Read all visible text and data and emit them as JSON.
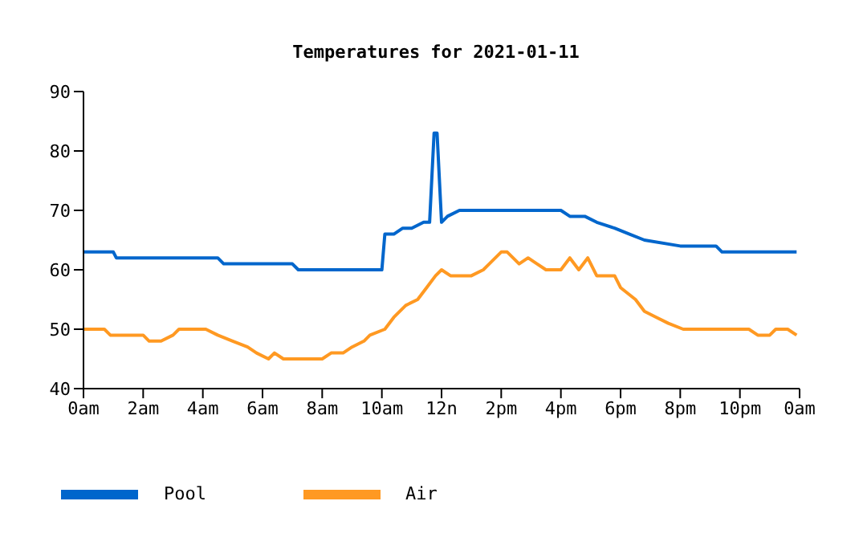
{
  "chart_data": {
    "type": "line",
    "title": "Temperatures for 2021-01-11",
    "xlim": [
      "2021-01-11T00:00",
      "2021-01-12T00:00"
    ],
    "xticks": [
      {
        "value": "2021-01-11T00:00",
        "label": "0am"
      },
      {
        "value": "2021-01-11T02:00",
        "label": "2am"
      },
      {
        "value": "2021-01-11T04:00",
        "label": "4am"
      },
      {
        "value": "2021-01-11T06:00",
        "label": "6am"
      },
      {
        "value": "2021-01-11T08:00",
        "label": "8am"
      },
      {
        "value": "2021-01-11T10:00",
        "label": "10am"
      },
      {
        "value": "2021-01-11T12:00",
        "label": "12n"
      },
      {
        "value": "2021-01-11T14:00",
        "label": "2pm"
      },
      {
        "value": "2021-01-11T16:00",
        "label": "4pm"
      },
      {
        "value": "2021-01-11T18:00",
        "label": "6pm"
      },
      {
        "value": "2021-01-11T20:00",
        "label": "8pm"
      },
      {
        "value": "2021-01-11T22:00",
        "label": "10pm"
      },
      {
        "value": "2021-01-12T00:00",
        "label": "0am"
      }
    ],
    "ylim": [
      40,
      90
    ],
    "yticks": [
      40,
      50,
      60,
      70,
      80,
      90
    ],
    "legend": "bottom left",
    "series": [
      {
        "name": "Pool",
        "color": "#0066cc",
        "x": [
          "2021-01-11T00:00",
          "2021-01-11T01:00",
          "2021-01-11T01:06",
          "2021-01-11T04:30",
          "2021-01-11T04:42",
          "2021-01-11T07:00",
          "2021-01-11T07:12",
          "2021-01-11T10:00",
          "2021-01-11T10:06",
          "2021-01-11T10:24",
          "2021-01-11T10:42",
          "2021-01-11T11:00",
          "2021-01-11T11:24",
          "2021-01-11T11:36",
          "2021-01-11T11:45",
          "2021-01-11T11:51",
          "2021-01-11T12:00",
          "2021-01-11T12:12",
          "2021-01-11T12:36",
          "2021-01-11T16:00",
          "2021-01-11T16:18",
          "2021-01-11T16:48",
          "2021-01-11T17:12",
          "2021-01-11T17:48",
          "2021-01-11T18:18",
          "2021-01-11T18:48",
          "2021-01-11T20:00",
          "2021-01-11T21:12",
          "2021-01-11T21:24",
          "2021-01-11T23:54"
        ],
        "values": [
          63,
          63,
          62,
          62,
          61,
          61,
          60,
          60,
          66,
          66,
          67,
          67,
          68,
          68,
          83,
          83,
          68,
          69,
          70,
          70,
          69,
          69,
          68,
          67,
          66,
          65,
          64,
          64,
          63,
          63
        ]
      },
      {
        "name": "Air",
        "color": "#ff9922",
        "x": [
          "2021-01-11T00:00",
          "2021-01-11T00:42",
          "2021-01-11T00:54",
          "2021-01-11T02:00",
          "2021-01-11T02:12",
          "2021-01-11T02:36",
          "2021-01-11T03:00",
          "2021-01-11T03:12",
          "2021-01-11T04:06",
          "2021-01-11T04:30",
          "2021-01-11T05:00",
          "2021-01-11T05:30",
          "2021-01-11T05:48",
          "2021-01-11T06:12",
          "2021-01-11T06:24",
          "2021-01-11T06:42",
          "2021-01-11T08:00",
          "2021-01-11T08:18",
          "2021-01-11T08:42",
          "2021-01-11T09:00",
          "2021-01-11T09:24",
          "2021-01-11T09:36",
          "2021-01-11T10:06",
          "2021-01-11T10:24",
          "2021-01-11T10:48",
          "2021-01-11T11:12",
          "2021-01-11T11:30",
          "2021-01-11T11:48",
          "2021-01-11T12:00",
          "2021-01-11T12:18",
          "2021-01-11T13:00",
          "2021-01-11T13:24",
          "2021-01-11T13:36",
          "2021-01-11T14:00",
          "2021-01-11T14:12",
          "2021-01-11T14:36",
          "2021-01-11T14:54",
          "2021-01-11T15:12",
          "2021-01-11T15:30",
          "2021-01-11T16:00",
          "2021-01-11T16:18",
          "2021-01-11T16:36",
          "2021-01-11T16:54",
          "2021-01-11T17:12",
          "2021-01-11T17:48",
          "2021-01-11T18:00",
          "2021-01-11T18:30",
          "2021-01-11T18:48",
          "2021-01-11T19:12",
          "2021-01-11T19:36",
          "2021-01-11T20:06",
          "2021-01-11T22:18",
          "2021-01-11T22:36",
          "2021-01-11T23:00",
          "2021-01-11T23:12",
          "2021-01-11T23:36",
          "2021-01-11T23:54"
        ],
        "values": [
          50,
          50,
          49,
          49,
          48,
          48,
          49,
          50,
          50,
          49,
          48,
          47,
          46,
          45,
          46,
          45,
          45,
          46,
          46,
          47,
          48,
          49,
          50,
          52,
          54,
          55,
          57,
          59,
          60,
          59,
          59,
          60,
          61,
          63,
          63,
          61,
          62,
          61,
          60,
          60,
          62,
          60,
          62,
          59,
          59,
          57,
          55,
          53,
          52,
          51,
          50,
          50,
          49,
          49,
          50,
          50,
          49
        ]
      }
    ]
  }
}
